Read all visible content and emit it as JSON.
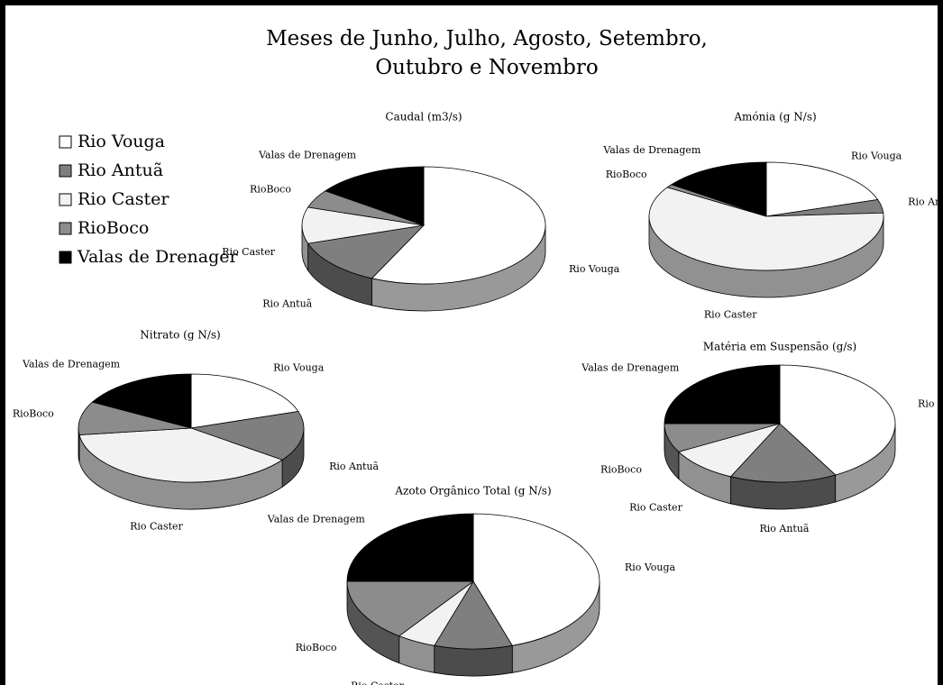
{
  "title": [
    "Meses de Junho, Julho, Agosto, Setembro,",
    "Outubro e Novembro"
  ],
  "legend": {
    "labels": [
      "Rio Vouga",
      "Rio Antuã",
      "Rio Caster",
      "RioBoco",
      "Valas de Drenager"
    ],
    "colors": [
      "#ffffff",
      "#7f7f7f",
      "#f2f2f2",
      "#8c8c8c",
      "#000000"
    ]
  },
  "chart_data": [
    {
      "type": "pie",
      "title": "Caudal (m3/s)",
      "categories": [
        "Rio Vouga",
        "Rio Antuã",
        "Rio Caster",
        "RioBoco",
        "Valas de Drenagem"
      ],
      "values": [
        57,
        13,
        10,
        5,
        15
      ]
    },
    {
      "type": "pie",
      "title": "Amónia (g N/s)",
      "categories": [
        "Rio Vouga",
        "Rio Antuã",
        "Rio Caster",
        "RioBoco",
        "Valas de Drenagem"
      ],
      "values": [
        20,
        4,
        60,
        1,
        15
      ]
    },
    {
      "type": "pie",
      "title": "Nitrato (g N/s)",
      "categories": [
        "Rio Vouga",
        "Rio Antuã",
        "Rio Caster",
        "RioBoco",
        "Valas de Drenagem"
      ],
      "values": [
        20,
        15,
        38,
        10,
        17
      ]
    },
    {
      "type": "pie",
      "title": "Matéria em Suspensão (g/s)",
      "categories": [
        "Rio Vouga",
        "Rio Antuã",
        "Rio Caster",
        "RioBoco",
        "Valas de Drenagem"
      ],
      "values": [
        42,
        15,
        10,
        8,
        25
      ]
    },
    {
      "type": "pie",
      "title": "Azoto Orgânico Total (g N/s)",
      "categories": [
        "Rio Vouga",
        "Rio Antuã",
        "Rio Caster",
        "RioBoco",
        "Valas de Drenagem"
      ],
      "values": [
        45,
        10,
        5,
        15,
        25
      ]
    }
  ]
}
